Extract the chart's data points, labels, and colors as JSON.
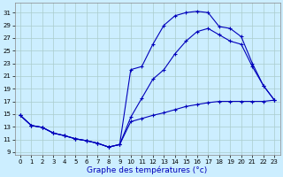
{
  "xlabel": "Graphe des températures (°c)",
  "background_color": "#cceeff",
  "line_color": "#0000bb",
  "marker": "+",
  "xlim": [
    -0.5,
    23.5
  ],
  "ylim": [
    8.5,
    32.5
  ],
  "xticks": [
    0,
    1,
    2,
    3,
    4,
    5,
    6,
    7,
    8,
    9,
    10,
    11,
    12,
    13,
    14,
    15,
    16,
    17,
    18,
    19,
    20,
    21,
    22,
    23
  ],
  "yticks": [
    9,
    11,
    13,
    15,
    17,
    19,
    21,
    23,
    25,
    27,
    29,
    31
  ],
  "grid_color": "#aacccc",
  "line1_x": [
    0,
    1,
    2,
    3,
    4,
    5,
    6,
    7,
    8,
    9,
    10,
    11,
    12,
    13,
    14,
    15,
    16,
    17,
    18,
    19,
    20,
    21,
    22,
    23
  ],
  "line1_y": [
    14.8,
    13.2,
    12.9,
    12.0,
    11.6,
    11.1,
    10.8,
    10.4,
    9.8,
    10.2,
    13.8,
    14.3,
    14.8,
    15.2,
    15.7,
    16.2,
    16.5,
    16.8,
    17.0,
    17.0,
    17.0,
    17.0,
    17.0,
    17.2
  ],
  "line2_x": [
    0,
    1,
    2,
    3,
    4,
    5,
    6,
    7,
    8,
    9,
    10,
    11,
    12,
    13,
    14,
    15,
    16,
    17,
    18,
    19,
    20,
    21,
    22,
    23
  ],
  "line2_y": [
    14.8,
    13.2,
    12.9,
    12.0,
    11.6,
    11.1,
    10.8,
    10.4,
    9.8,
    10.2,
    22.0,
    22.5,
    26.0,
    29.0,
    30.5,
    31.0,
    31.2,
    31.0,
    28.8,
    28.5,
    27.2,
    23.0,
    19.5,
    17.2
  ],
  "line3_x": [
    0,
    1,
    2,
    3,
    4,
    5,
    6,
    7,
    8,
    9,
    10,
    11,
    12,
    13,
    14,
    15,
    16,
    17,
    18,
    19,
    20,
    21,
    22,
    23
  ],
  "line3_y": [
    14.8,
    13.2,
    12.9,
    12.0,
    11.6,
    11.1,
    10.8,
    10.4,
    9.8,
    10.2,
    14.5,
    17.5,
    20.5,
    22.0,
    24.5,
    26.5,
    28.0,
    28.5,
    27.5,
    26.5,
    26.0,
    22.5,
    19.5,
    17.2
  ]
}
